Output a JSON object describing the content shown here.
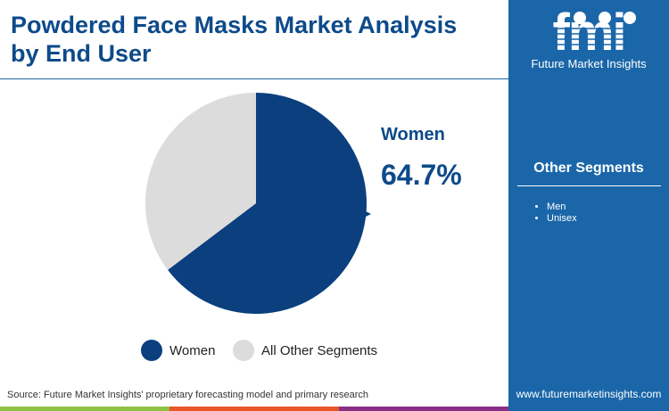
{
  "title": "Powdered Face Masks Market Analysis by End User",
  "brand": {
    "logo_text": "fmi",
    "name": "Future Market Insights",
    "url": "www.futuremarketinsights.com"
  },
  "side": {
    "title": "Other Segments",
    "items": [
      "Men",
      "Unisex"
    ]
  },
  "source": "Source: Future Market Insights' proprietary forecasting model and primary research",
  "colors": {
    "women": "#0b3f7e",
    "other": "#dcdcdc",
    "sidebar": "#1a66a8",
    "bars": [
      "#8dc043",
      "#e8562a",
      "#8a2f86"
    ]
  },
  "chart_data": {
    "type": "pie",
    "categories": [
      "Women",
      "All Other Segments"
    ],
    "values": [
      64.7,
      35.3
    ],
    "callout": {
      "label": "Women",
      "value": "64.7%"
    },
    "legend": "bottom"
  }
}
